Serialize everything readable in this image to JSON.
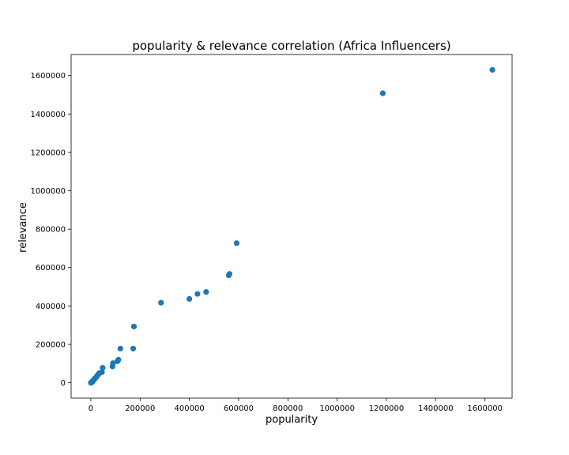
{
  "chart_data": {
    "type": "scatter",
    "title": "popularity & relevance correlation (Africa Influencers)",
    "xlabel": "popularity",
    "ylabel": "relevance",
    "xlim": [
      -80000,
      1710000
    ],
    "ylim": [
      -80000,
      1710000
    ],
    "xticks": [
      0,
      200000,
      400000,
      600000,
      800000,
      1000000,
      1200000,
      1400000,
      1600000
    ],
    "yticks": [
      0,
      200000,
      400000,
      600000,
      800000,
      1000000,
      1200000,
      1400000,
      1600000
    ],
    "grid": false,
    "marker_color": "#1f77b4",
    "points": [
      {
        "x": 0,
        "y": 0
      },
      {
        "x": 1500,
        "y": 2000
      },
      {
        "x": 3000,
        "y": 1500
      },
      {
        "x": 4000,
        "y": 5000
      },
      {
        "x": 6000,
        "y": 4000
      },
      {
        "x": 8000,
        "y": 9000
      },
      {
        "x": 10000,
        "y": 12000
      },
      {
        "x": 12000,
        "y": 15000
      },
      {
        "x": 14000,
        "y": 18000
      },
      {
        "x": 16000,
        "y": 22000
      },
      {
        "x": 19000,
        "y": 25000
      },
      {
        "x": 22000,
        "y": 30000
      },
      {
        "x": 25000,
        "y": 35000
      },
      {
        "x": 28000,
        "y": 40000
      },
      {
        "x": 31000,
        "y": 45000
      },
      {
        "x": 34000,
        "y": 50000
      },
      {
        "x": 45000,
        "y": 55000
      },
      {
        "x": 48000,
        "y": 78000
      },
      {
        "x": 88000,
        "y": 85000
      },
      {
        "x": 90000,
        "y": 102000
      },
      {
        "x": 108000,
        "y": 112000
      },
      {
        "x": 112000,
        "y": 120000
      },
      {
        "x": 120000,
        "y": 178000
      },
      {
        "x": 172000,
        "y": 178000
      },
      {
        "x": 175000,
        "y": 293000
      },
      {
        "x": 285000,
        "y": 417000
      },
      {
        "x": 400000,
        "y": 437000
      },
      {
        "x": 433000,
        "y": 463000
      },
      {
        "x": 468000,
        "y": 473000
      },
      {
        "x": 560000,
        "y": 560000
      },
      {
        "x": 563000,
        "y": 567000
      },
      {
        "x": 592000,
        "y": 727000
      },
      {
        "x": 1185000,
        "y": 1508000
      },
      {
        "x": 1630000,
        "y": 1630000
      }
    ]
  }
}
